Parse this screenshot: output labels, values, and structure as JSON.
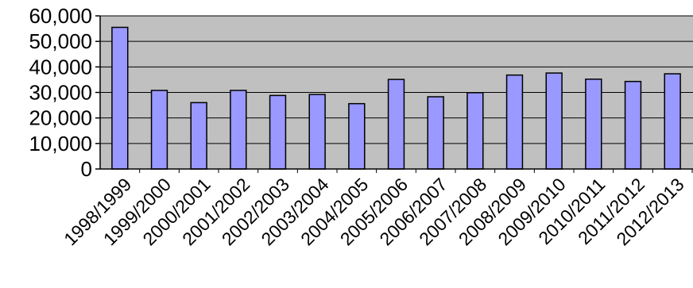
{
  "chart_data": {
    "type": "bar",
    "title": "",
    "xlabel": "",
    "ylabel": "",
    "categories": [
      "1998/1999",
      "1999/2000",
      "2000/2001",
      "2001/2002",
      "2002/2003",
      "2003/2004",
      "2004/2005",
      "2005/2006",
      "2006/2007",
      "2007/2008",
      "2008/2009",
      "2009/2010",
      "2010/2011",
      "2011/2012",
      "2012/2013"
    ],
    "values": [
      55500,
      30800,
      26000,
      30800,
      28800,
      29200,
      25600,
      35100,
      28300,
      29900,
      36800,
      37600,
      35200,
      34300,
      37300
    ],
    "ylim": [
      0,
      60000
    ],
    "yticks": [
      0,
      10000,
      20000,
      30000,
      40000,
      50000,
      60000
    ],
    "ytick_labels": [
      "0",
      "10,000",
      "20,000",
      "30,000",
      "40,000",
      "50,000",
      "60,000"
    ],
    "grid": true,
    "legend": "none",
    "colors": {
      "bar_fill": "#9999ff",
      "bar_stroke": "#000000",
      "plot_background": "#c0c0c0",
      "grid": "#000000"
    }
  }
}
